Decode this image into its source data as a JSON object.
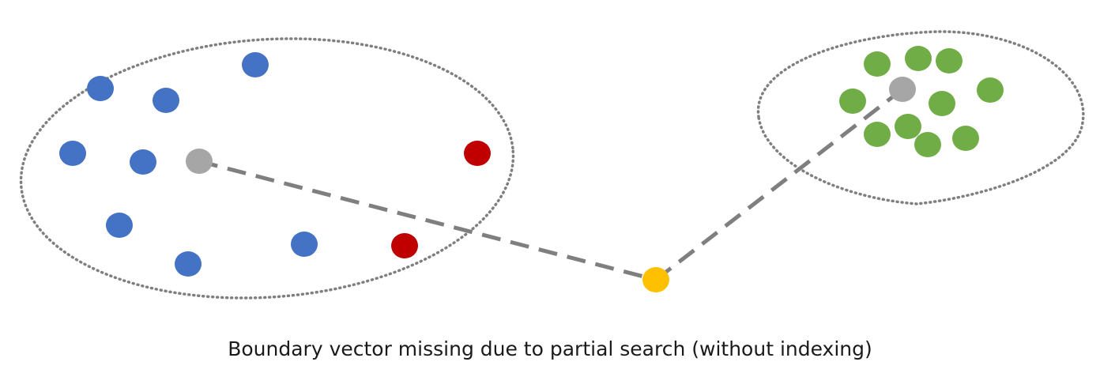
{
  "caption": "Boundary vector missing due to partial search (without indexing)",
  "colors": {
    "blue": "#4472c4",
    "red": "#c00000",
    "green": "#70ad47",
    "gray": "#a6a6a6",
    "yellow": "#ffc000",
    "connector": "#7f7f7f",
    "outline": "#7f7f7f"
  },
  "clusters": [
    {
      "id": "left-cluster",
      "points": [
        {
          "color": "blue"
        },
        {
          "color": "blue"
        },
        {
          "color": "blue"
        },
        {
          "color": "blue"
        },
        {
          "color": "blue"
        },
        {
          "color": "blue"
        },
        {
          "color": "blue"
        },
        {
          "color": "blue"
        },
        {
          "color": "gray",
          "role": "centroid"
        },
        {
          "color": "red"
        },
        {
          "color": "red"
        }
      ]
    },
    {
      "id": "right-cluster",
      "points": [
        {
          "color": "green"
        },
        {
          "color": "green"
        },
        {
          "color": "green"
        },
        {
          "color": "green"
        },
        {
          "color": "green"
        },
        {
          "color": "green"
        },
        {
          "color": "green"
        },
        {
          "color": "green"
        },
        {
          "color": "green"
        },
        {
          "color": "green"
        },
        {
          "color": "gray",
          "role": "centroid"
        }
      ]
    }
  ],
  "query_point": {
    "color": "yellow"
  }
}
